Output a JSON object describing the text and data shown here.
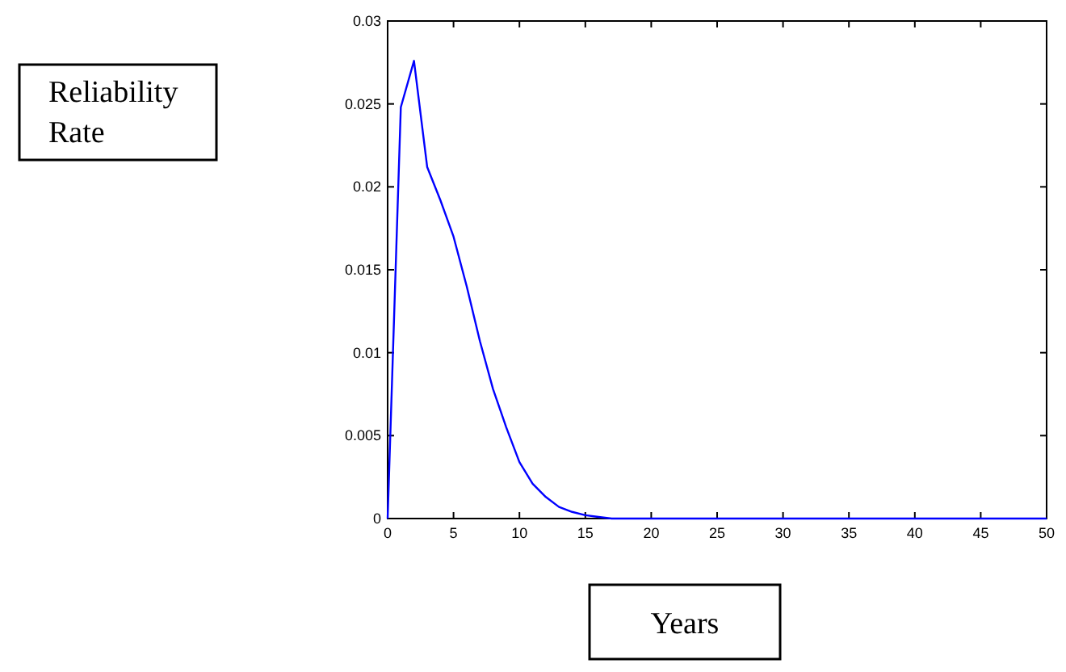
{
  "chart_data": {
    "type": "line",
    "xlabel": "Years",
    "annotations": [
      "Reliability Rate"
    ],
    "x": [
      0,
      1,
      2,
      3,
      4,
      5,
      6,
      7,
      8,
      9,
      10,
      11,
      12,
      13,
      14,
      15,
      16,
      17,
      18,
      19,
      20,
      30,
      40,
      50
    ],
    "series": [
      {
        "color": "#0000ff",
        "values": [
          0,
          0.0248,
          0.0276,
          0.0212,
          0.0192,
          0.017,
          0.014,
          0.0107,
          0.0078,
          0.0055,
          0.0034,
          0.0021,
          0.0013,
          0.0007,
          0.0004,
          0.0002,
          0.0001,
          0,
          0,
          0,
          0,
          0,
          0,
          0
        ]
      }
    ],
    "xlim": [
      0,
      50
    ],
    "xticks": [
      0,
      5,
      10,
      15,
      20,
      25,
      30,
      35,
      40,
      45,
      50
    ],
    "ylim": [
      0,
      0.03
    ],
    "yticks": [
      0,
      0.005,
      0.01,
      0.015,
      0.02,
      0.025,
      0.03
    ],
    "grid": false,
    "marker": "none",
    "line_style": "solid"
  }
}
